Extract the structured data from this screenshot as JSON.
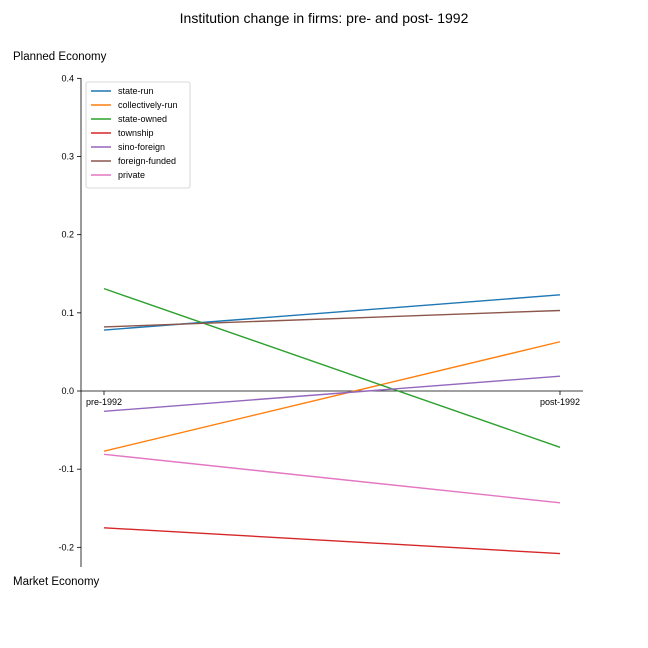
{
  "chart_data": {
    "type": "line",
    "title": "Institution change in firms: pre- and post- 1992",
    "ylabel_top": "Planned Economy",
    "ylabel_bottom": "Market Economy",
    "categories": [
      "pre-1992",
      "post-1992"
    ],
    "ylim": [
      -0.225,
      0.4
    ],
    "yticks": [
      -0.2,
      -0.1,
      0.0,
      0.1,
      0.2,
      0.3,
      0.4
    ],
    "ytick_labels": [
      "-0.2",
      "-0.1",
      "0.0",
      "0.1",
      "0.2",
      "0.3",
      "0.4"
    ],
    "grid": false,
    "legend_position": "upper-left",
    "series": [
      {
        "name": "state-run",
        "color": "#1f77b4",
        "values": [
          0.078,
          0.123
        ]
      },
      {
        "name": "collectively-run",
        "color": "#ff7f0e",
        "values": [
          -0.077,
          0.063
        ]
      },
      {
        "name": "state-owned",
        "color": "#2ca02c",
        "values": [
          0.131,
          -0.072
        ]
      },
      {
        "name": "township",
        "color": "#d62728",
        "values": [
          -0.175,
          -0.208
        ]
      },
      {
        "name": "sino-foreign",
        "color": "#9467bd",
        "values": [
          -0.026,
          0.019
        ]
      },
      {
        "name": "foreign-funded",
        "color": "#8c564b",
        "values": [
          0.082,
          0.103
        ]
      },
      {
        "name": "private",
        "color": "#e377c2",
        "values": [
          -0.081,
          -0.143
        ]
      }
    ]
  }
}
